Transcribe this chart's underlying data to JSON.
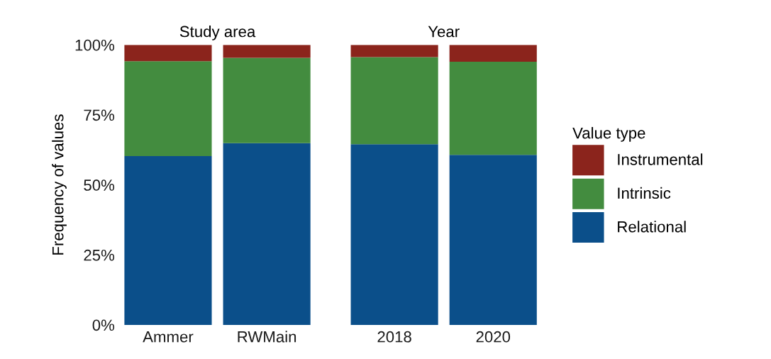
{
  "chart_data": [
    {
      "type": "bar",
      "stacked": true,
      "title": "Study area",
      "ylabel": "Frequency of values",
      "categories": [
        "Ammer",
        "RWMain"
      ],
      "series": [
        {
          "color": "#0b4f8a",
          "values": [
            60.3,
            64.9
          ]
        },
        {
          "color": "#438c3f",
          "values": [
            33.9,
            30.5
          ]
        },
        {
          "color": "#8b241c",
          "values": [
            5.8,
            4.6
          ]
        }
      ],
      "ylim": [
        0,
        100
      ],
      "yticks": [
        {
          "value": 0,
          "label": "0%"
        },
        {
          "value": 25,
          "label": "25%"
        },
        {
          "value": 50,
          "label": "50%"
        },
        {
          "value": 75,
          "label": "75%"
        },
        {
          "value": 100,
          "label": "100%"
        }
      ],
      "grid": false
    },
    {
      "type": "bar",
      "stacked": true,
      "title": "Year",
      "legend_title": "Value type",
      "categories": [
        "2018",
        "2020"
      ],
      "series": [
        {
          "name": "Relational",
          "color": "#0b4f8a",
          "values": [
            64.5,
            60.7
          ]
        },
        {
          "name": "Intrinsic",
          "color": "#438c3f",
          "values": [
            31.1,
            33.3
          ]
        },
        {
          "name": "Instrumental",
          "color": "#8b241c",
          "values": [
            4.4,
            6.0
          ]
        }
      ],
      "ylim": [
        0,
        100
      ],
      "tick_labels": "x",
      "grid": false,
      "legend": "right"
    }
  ]
}
